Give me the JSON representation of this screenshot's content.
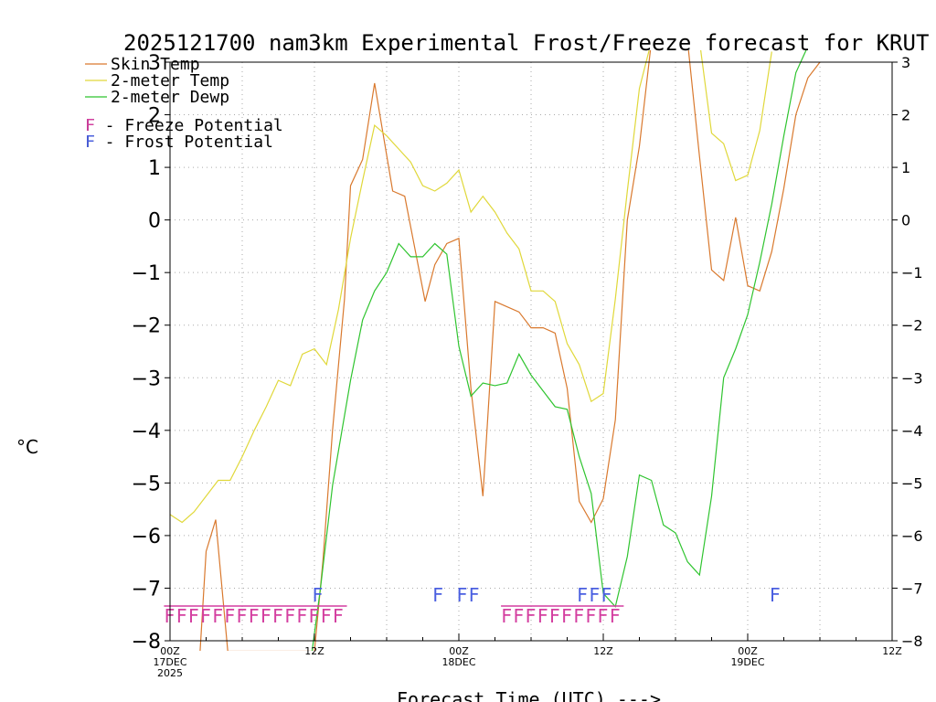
{
  "chart_data": {
    "type": "line",
    "title": "2025121700 nam3km Experimental Frost/Freeze forecast for KRUT",
    "ylabel": "°C",
    "xlabel": "Forecast Time (UTC) --->",
    "ylim": [
      -8,
      3
    ],
    "xlim": [
      0,
      60
    ],
    "y_ticks": [
      -8,
      -7,
      -6,
      -5,
      -4,
      -3,
      -2,
      -1,
      0,
      1,
      2,
      3
    ],
    "x_ticks": [
      {
        "hour": 0,
        "lines": [
          "00Z",
          "17DEC",
          "2025"
        ]
      },
      {
        "hour": 12,
        "lines": [
          "12Z"
        ]
      },
      {
        "hour": 24,
        "lines": [
          "00Z",
          "18DEC"
        ]
      },
      {
        "hour": 36,
        "lines": [
          "12Z"
        ]
      },
      {
        "hour": 48,
        "lines": [
          "00Z",
          "19DEC"
        ]
      },
      {
        "hour": 60,
        "lines": [
          "12Z"
        ]
      }
    ],
    "grid": true,
    "legend_position": "top-left",
    "series": [
      {
        "name": "Skin Temp",
        "color": "#d9792e",
        "points": [
          [
            2.5,
            -8.2
          ],
          [
            3,
            -6.3
          ],
          [
            3.8,
            -5.7
          ],
          [
            4.8,
            -8.2
          ],
          [
            12,
            -8.2
          ],
          [
            12.7,
            -6.5
          ],
          [
            13.5,
            -4
          ],
          [
            14.5,
            -1.5
          ],
          [
            15,
            0.65
          ],
          [
            16,
            1.15
          ],
          [
            17,
            2.6
          ],
          [
            18.5,
            0.55
          ],
          [
            19.5,
            0.45
          ],
          [
            21.2,
            -1.55
          ],
          [
            22,
            -0.85
          ],
          [
            23,
            -0.45
          ],
          [
            24,
            -0.35
          ],
          [
            25,
            -3.2
          ],
          [
            26,
            -5.25
          ],
          [
            27,
            -1.55
          ],
          [
            29,
            -1.75
          ],
          [
            30,
            -2.05
          ],
          [
            31,
            -2.05
          ],
          [
            32,
            -2.15
          ],
          [
            33,
            -3.2
          ],
          [
            34,
            -5.35
          ],
          [
            35,
            -5.75
          ],
          [
            36,
            -5.3
          ],
          [
            37,
            -3.8
          ],
          [
            38,
            0
          ],
          [
            39,
            1.4
          ],
          [
            40,
            3.4
          ],
          [
            43,
            3.4
          ],
          [
            44,
            1.2
          ],
          [
            45,
            -0.95
          ],
          [
            46,
            -1.15
          ],
          [
            47,
            0.05
          ],
          [
            48,
            -1.25
          ],
          [
            49,
            -1.35
          ],
          [
            50,
            -0.6
          ],
          [
            51,
            0.6
          ],
          [
            52,
            2.0
          ],
          [
            53,
            2.7
          ],
          [
            54,
            3
          ]
        ]
      },
      {
        "name": "2-meter Temp",
        "color": "#e0d83a",
        "points": [
          [
            0,
            -5.6
          ],
          [
            1,
            -5.75
          ],
          [
            2,
            -5.55
          ],
          [
            4,
            -4.95
          ],
          [
            5,
            -4.95
          ],
          [
            6,
            -4.5
          ],
          [
            7,
            -4
          ],
          [
            8,
            -3.55
          ],
          [
            9,
            -3.05
          ],
          [
            10,
            -3.15
          ],
          [
            11,
            -2.55
          ],
          [
            12,
            -2.45
          ],
          [
            13,
            -2.75
          ],
          [
            14,
            -1.7
          ],
          [
            15,
            -0.35
          ],
          [
            16,
            0.75
          ],
          [
            17,
            1.8
          ],
          [
            18,
            1.6
          ],
          [
            19,
            1.35
          ],
          [
            20,
            1.1
          ],
          [
            21,
            0.65
          ],
          [
            22,
            0.55
          ],
          [
            23,
            0.7
          ],
          [
            24,
            0.95
          ],
          [
            25,
            0.15
          ],
          [
            26,
            0.45
          ],
          [
            27,
            0.15
          ],
          [
            28,
            -0.25
          ],
          [
            29,
            -0.55
          ],
          [
            30,
            -1.35
          ],
          [
            31,
            -1.35
          ],
          [
            32,
            -1.55
          ],
          [
            33,
            -2.35
          ],
          [
            34,
            -2.75
          ],
          [
            35,
            -3.45
          ],
          [
            36,
            -3.3
          ],
          [
            37,
            -1.5
          ],
          [
            38,
            0.55
          ],
          [
            39,
            2.5
          ],
          [
            40,
            3.4
          ],
          [
            44,
            3.4
          ],
          [
            45,
            1.65
          ],
          [
            46,
            1.45
          ],
          [
            47,
            0.75
          ],
          [
            48,
            0.85
          ],
          [
            49,
            1.7
          ],
          [
            50,
            3.2
          ]
        ]
      },
      {
        "name": "2-meter Dewp",
        "color": "#2fc42f",
        "points": [
          [
            11.8,
            -8.2
          ],
          [
            12.5,
            -7
          ],
          [
            13.5,
            -5.05
          ],
          [
            15,
            -3.05
          ],
          [
            16,
            -1.9
          ],
          [
            17,
            -1.35
          ],
          [
            18,
            -1
          ],
          [
            19,
            -0.45
          ],
          [
            20,
            -0.7
          ],
          [
            21,
            -0.7
          ],
          [
            22,
            -0.45
          ],
          [
            23,
            -0.65
          ],
          [
            24,
            -2.4
          ],
          [
            25,
            -3.35
          ],
          [
            26,
            -3.1
          ],
          [
            27,
            -3.15
          ],
          [
            28,
            -3.1
          ],
          [
            29,
            -2.55
          ],
          [
            30,
            -2.95
          ],
          [
            31,
            -3.25
          ],
          [
            32,
            -3.55
          ],
          [
            33,
            -3.6
          ],
          [
            34,
            -4.5
          ],
          [
            35,
            -5.2
          ],
          [
            36,
            -7.1
          ],
          [
            37,
            -7.35
          ],
          [
            38,
            -6.4
          ],
          [
            39,
            -4.85
          ],
          [
            40,
            -4.95
          ],
          [
            41,
            -5.8
          ],
          [
            42,
            -5.95
          ],
          [
            43,
            -6.5
          ],
          [
            44,
            -6.75
          ],
          [
            45,
            -5.25
          ],
          [
            46,
            -3
          ],
          [
            47,
            -2.45
          ],
          [
            48,
            -1.8
          ],
          [
            49,
            -0.8
          ],
          [
            50,
            0.3
          ],
          [
            51,
            1.6
          ],
          [
            52,
            2.8
          ],
          [
            53,
            3.3
          ]
        ]
      }
    ],
    "freeze_potential": {
      "label": "F - Freeze Potential",
      "color": "#d43fa0",
      "markers": [
        0,
        1,
        2,
        3,
        4,
        5,
        6,
        7,
        8,
        9,
        10,
        11,
        12,
        13,
        14,
        28,
        29,
        30,
        31,
        32,
        33,
        34,
        35,
        36,
        37
      ]
    },
    "frost_potential": {
      "label": "F - Frost Potential",
      "color": "#4a5fe0",
      "markers": [
        12,
        22,
        24,
        25,
        34,
        35,
        36,
        50
      ]
    }
  }
}
